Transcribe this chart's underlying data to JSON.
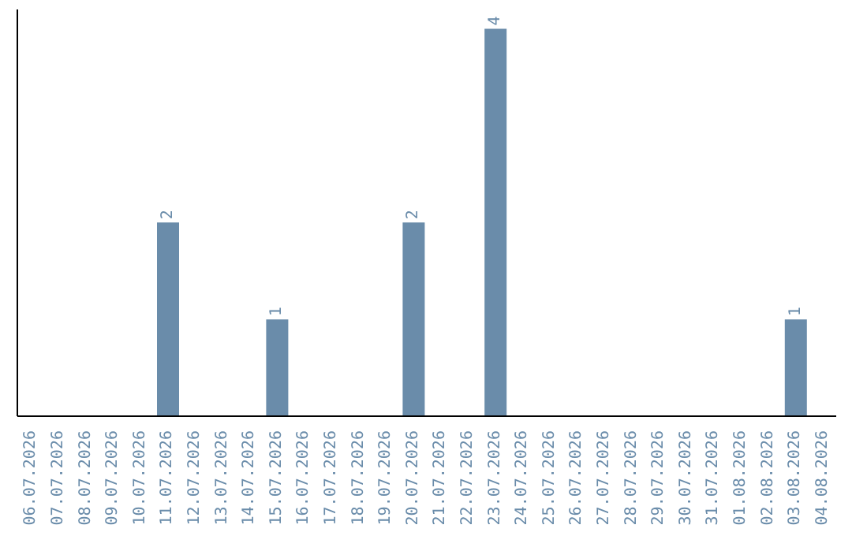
{
  "chart_data": {
    "type": "bar",
    "categories": [
      "06.07.2026",
      "07.07.2026",
      "08.07.2026",
      "09.07.2026",
      "10.07.2026",
      "11.07.2026",
      "12.07.2026",
      "13.07.2026",
      "14.07.2026",
      "15.07.2026",
      "16.07.2026",
      "17.07.2026",
      "18.07.2026",
      "19.07.2026",
      "20.07.2026",
      "21.07.2026",
      "22.07.2026",
      "23.07.2026",
      "24.07.2026",
      "25.07.2026",
      "26.07.2026",
      "27.07.2026",
      "28.07.2026",
      "29.07.2026",
      "30.07.2026",
      "31.07.2026",
      "01.08.2026",
      "02.08.2026",
      "03.08.2026",
      "04.08.2026"
    ],
    "values": [
      0,
      0,
      0,
      0,
      0,
      2,
      0,
      0,
      0,
      1,
      0,
      0,
      0,
      0,
      2,
      0,
      0,
      4,
      0,
      0,
      0,
      0,
      0,
      0,
      0,
      0,
      0,
      0,
      1,
      0
    ],
    "value_labels": [
      null,
      null,
      null,
      null,
      null,
      "2",
      null,
      null,
      null,
      "1",
      null,
      null,
      null,
      null,
      "2",
      null,
      null,
      "4",
      null,
      null,
      null,
      null,
      null,
      null,
      null,
      null,
      null,
      null,
      "1",
      null
    ],
    "color": "#6a8caa",
    "tick_labels": "x",
    "grid": false,
    "legend": false
  }
}
